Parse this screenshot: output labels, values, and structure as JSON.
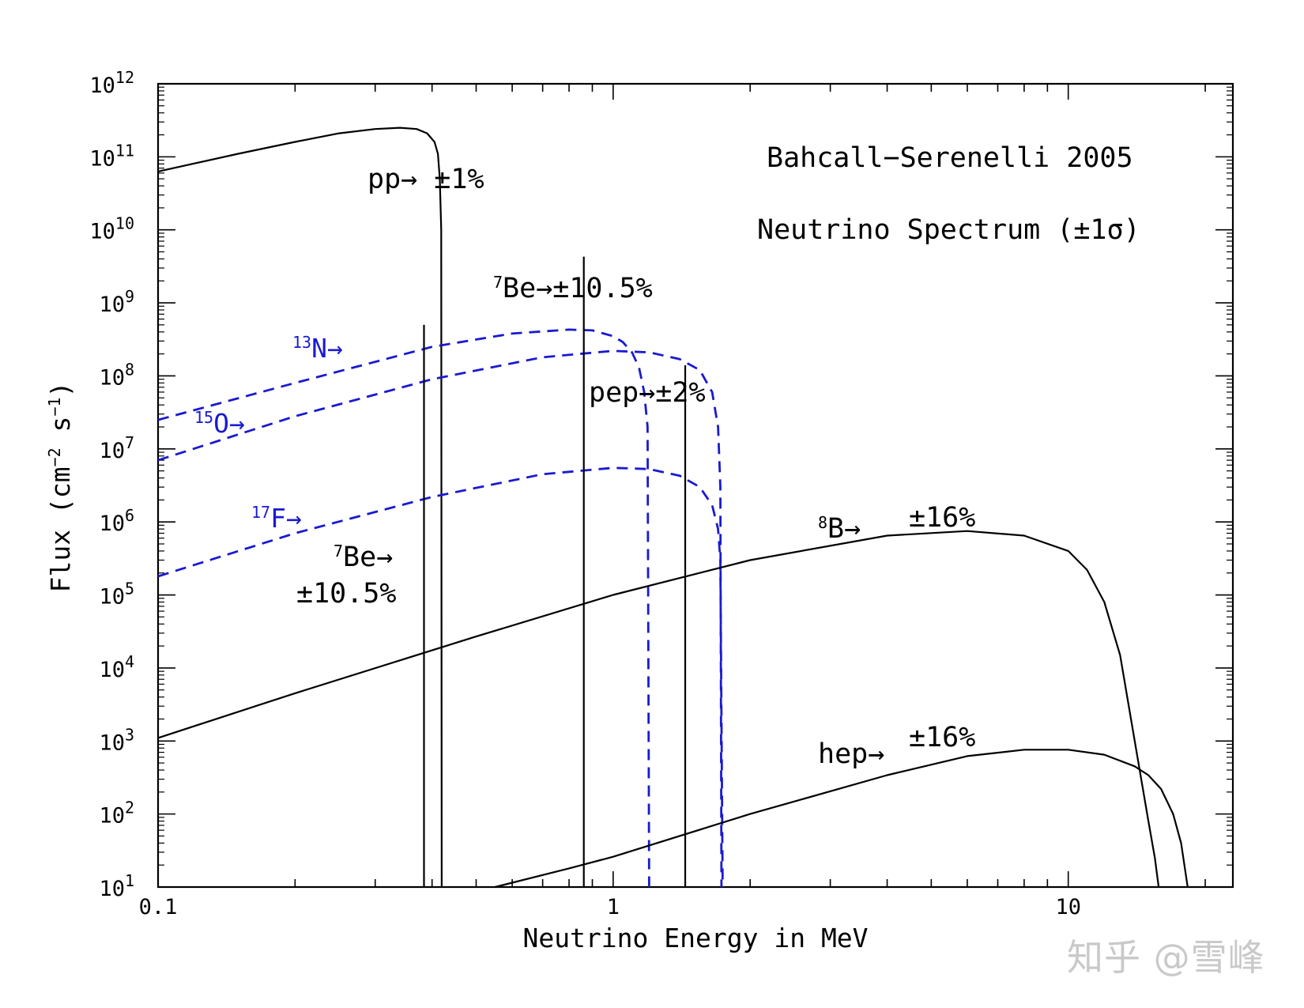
{
  "chart_data": {
    "type": "line",
    "title": "Bahcall−Serenelli 2005",
    "subtitle": "Neutrino Spectrum (±1σ)",
    "xlabel": "Neutrino Energy in MeV",
    "ylabel": "Flux (cm",
    "ylabel_sup1": "−2",
    "ylabel_mid": " s",
    "ylabel_sup2": "−1",
    "ylabel_end": ")",
    "xscale": "log",
    "yscale": "log",
    "xlim": [
      0.1,
      23
    ],
    "ylim": [
      10,
      1000000000000.0
    ],
    "x_ticks": [
      {
        "value": 0.1,
        "label": "0.1"
      },
      {
        "value": 1,
        "label": "1"
      },
      {
        "value": 10,
        "label": "10"
      }
    ],
    "y_ticks": [
      {
        "value": 10,
        "base": "10",
        "exp": "1"
      },
      {
        "value": 100,
        "base": "10",
        "exp": "2"
      },
      {
        "value": 1000,
        "base": "10",
        "exp": "3"
      },
      {
        "value": 10000,
        "base": "10",
        "exp": "4"
      },
      {
        "value": 100000,
        "base": "10",
        "exp": "5"
      },
      {
        "value": 1000000,
        "base": "10",
        "exp": "6"
      },
      {
        "value": 10000000,
        "base": "10",
        "exp": "7"
      },
      {
        "value": 100000000,
        "base": "10",
        "exp": "8"
      },
      {
        "value": 1000000000,
        "base": "10",
        "exp": "9"
      },
      {
        "value": 10000000000,
        "base": "10",
        "exp": "10"
      },
      {
        "value": 100000000000,
        "base": "10",
        "exp": "11"
      },
      {
        "value": 1000000000000,
        "base": "10",
        "exp": "12"
      }
    ],
    "continuum_series": [
      {
        "name": "pp",
        "color": "#000000",
        "dashed": false,
        "x": [
          0.1,
          0.15,
          0.2,
          0.25,
          0.3,
          0.34,
          0.37,
          0.39,
          0.405,
          0.412,
          0.416,
          0.419,
          0.42
        ],
        "y": [
          63000000000.0,
          110000000000.0,
          160000000000.0,
          210000000000.0,
          240000000000.0,
          250000000000.0,
          240000000000.0,
          210000000000.0,
          160000000000.0,
          110000000000.0,
          50000000000.0,
          10000000000.0,
          10
        ]
      },
      {
        "name": "13N",
        "color": "#1a1ad0",
        "dashed": true,
        "x": [
          0.1,
          0.2,
          0.4,
          0.6,
          0.8,
          0.9,
          1.0,
          1.05,
          1.1,
          1.14,
          1.17,
          1.19,
          1.2
        ],
        "y": [
          25000000.0,
          80000000.0,
          250000000.0,
          380000000.0,
          430000000.0,
          420000000.0,
          350000000.0,
          290000000.0,
          210000000.0,
          130000000.0,
          60000000.0,
          20000000.0,
          10
        ]
      },
      {
        "name": "15O",
        "color": "#1a1ad0",
        "dashed": true,
        "x": [
          0.1,
          0.2,
          0.4,
          0.7,
          1.0,
          1.2,
          1.4,
          1.55,
          1.65,
          1.7,
          1.72,
          1.73
        ],
        "y": [
          7000000.0,
          28000000.0,
          90000000.0,
          180000000.0,
          220000000.0,
          210000000.0,
          170000000.0,
          120000000.0,
          60000000.0,
          20000000.0,
          3000000.0,
          10
        ]
      },
      {
        "name": "17F",
        "color": "#1a1ad0",
        "dashed": true,
        "x": [
          0.1,
          0.2,
          0.4,
          0.7,
          1.0,
          1.2,
          1.4,
          1.55,
          1.65,
          1.7,
          1.72,
          1.74
        ],
        "y": [
          180000.0,
          700000.0,
          2200000.0,
          4500000.0,
          5500000.0,
          5300000.0,
          4300000.0,
          3000000.0,
          1700000.0,
          800000.0,
          300000.0,
          10
        ]
      },
      {
        "name": "8B",
        "color": "#000000",
        "dashed": false,
        "x": [
          0.1,
          0.2,
          0.5,
          1,
          2,
          4,
          6,
          8,
          10,
          11,
          12,
          13,
          14,
          15,
          15.5,
          15.8
        ],
        "y": [
          1100.0,
          4500.0,
          27000.0,
          100000.0,
          300000.0,
          650000.0,
          750000.0,
          650000.0,
          400000.0,
          220000.0,
          80000.0,
          15000.0,
          1000.0,
          80,
          25,
          10
        ]
      },
      {
        "name": "hep",
        "color": "#000000",
        "dashed": false,
        "x": [
          0.55,
          0.8,
          1,
          2,
          4,
          6,
          8,
          10,
          12,
          14,
          15,
          16,
          17,
          17.7,
          18.3
        ],
        "y": [
          10,
          18,
          26,
          100,
          340,
          620,
          760,
          760,
          650,
          450,
          340,
          220,
          100,
          40,
          10
        ]
      }
    ],
    "line_sources": [
      {
        "name": "7Be (0.384 MeV)",
        "color": "#000000",
        "x": 0.384,
        "y_top": 500000000.0
      },
      {
        "name": "7Be (0.862 MeV)",
        "color": "#000000",
        "x": 0.862,
        "y_top": 4300000000.0
      },
      {
        "name": "pep",
        "color": "#000000",
        "x": 1.44,
        "y_top": 140000000.0
      }
    ],
    "annotations": [
      {
        "id": "pp",
        "sup": "",
        "name": "pp",
        "arrow": "→",
        "unc": " ±1%",
        "color": "#000000"
      },
      {
        "id": "be7a",
        "sup": "7",
        "name": "Be",
        "arrow": "→",
        "unc": "±10.5%",
        "color": "#000000"
      },
      {
        "id": "n13",
        "sup": "13",
        "name": "N",
        "arrow": "→",
        "unc": "",
        "color": "#1a1ad0"
      },
      {
        "id": "o15",
        "sup": "15",
        "name": "O",
        "arrow": "→",
        "unc": "",
        "color": "#1a1ad0"
      },
      {
        "id": "pep",
        "sup": "",
        "name": "pep",
        "arrow": "→",
        "unc": "±2%",
        "color": "#000000"
      },
      {
        "id": "f17",
        "sup": "17",
        "name": "F",
        "arrow": "→",
        "unc": "",
        "color": "#1a1ad0"
      },
      {
        "id": "be7b",
        "sup": "7",
        "name": "Be",
        "arrow": "→",
        "unc": "±10.5%",
        "color": "#000000"
      },
      {
        "id": "b8",
        "sup": "8",
        "name": "B",
        "arrow": "→",
        "unc": "±16%",
        "color": "#000000"
      },
      {
        "id": "hep",
        "sup": "",
        "name": "hep",
        "arrow": "→",
        "unc": "±16%",
        "color": "#000000"
      }
    ]
  },
  "watermark": "知乎 @雪峰"
}
